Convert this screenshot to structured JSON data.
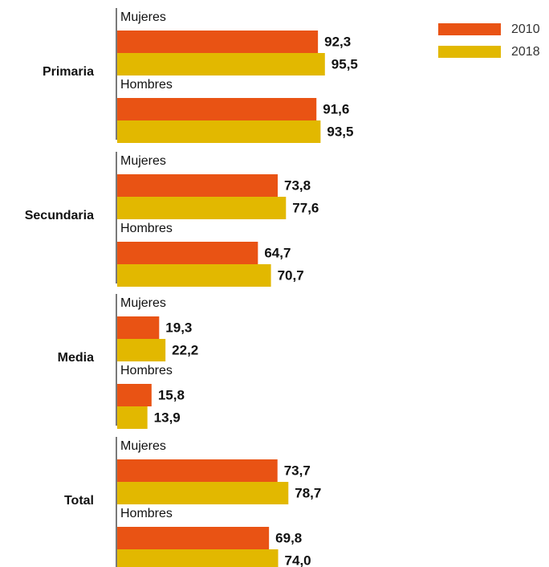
{
  "chart_data": {
    "type": "bar",
    "orientation": "horizontal",
    "legend": {
      "placement": "top-right"
    },
    "colors": {
      "2010": "#E95314",
      "2018": "#E2B800"
    },
    "series": [
      {
        "name": "2010",
        "color": "#E95314"
      },
      {
        "name": "2018",
        "color": "#E2B800"
      }
    ],
    "groups": [
      {
        "label": "Primaria",
        "subgroups": [
          {
            "label": "Mujeres",
            "values": [
              92.3,
              95.5
            ],
            "value_labels": [
              "92,3",
              "95,5"
            ]
          },
          {
            "label": "Hombres",
            "values": [
              91.6,
              93.5
            ],
            "value_labels": [
              "91,6",
              "93,5"
            ]
          }
        ]
      },
      {
        "label": "Secundaria",
        "subgroups": [
          {
            "label": "Mujeres",
            "values": [
              73.8,
              77.6
            ],
            "value_labels": [
              "73,8",
              "77,6"
            ]
          },
          {
            "label": "Hombres",
            "values": [
              64.7,
              70.7
            ],
            "value_labels": [
              "64,7",
              "70,7"
            ]
          }
        ]
      },
      {
        "label": "Media",
        "subgroups": [
          {
            "label": "Mujeres",
            "values": [
              19.3,
              22.2
            ],
            "value_labels": [
              "19,3",
              "22,2"
            ]
          },
          {
            "label": "Hombres",
            "values": [
              15.8,
              13.9
            ],
            "value_labels": [
              "15,8",
              "13,9"
            ]
          }
        ]
      },
      {
        "label": "Total",
        "subgroups": [
          {
            "label": "Mujeres",
            "values": [
              73.7,
              78.7
            ],
            "value_labels": [
              "73,7",
              "78,7"
            ]
          },
          {
            "label": "Hombres",
            "values": [
              69.8,
              74.0
            ],
            "value_labels": [
              "69,8",
              "74,0"
            ]
          }
        ]
      }
    ],
    "xlim": [
      0,
      100
    ]
  }
}
